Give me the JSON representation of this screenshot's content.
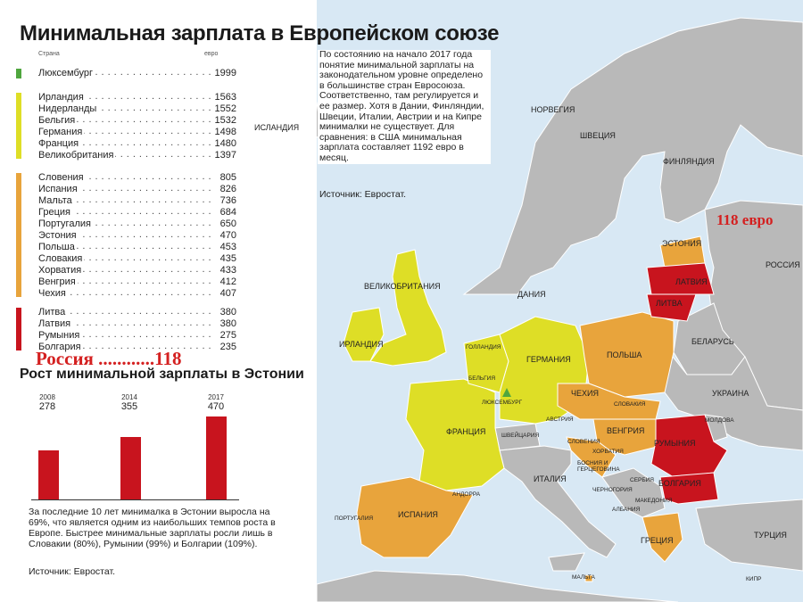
{
  "title": "Минимальная зарплата в Европейском союзе",
  "table_header": {
    "country": "Страна",
    "unit": "евро"
  },
  "groups": [
    {
      "color": "#4fa63e",
      "items": [
        {
          "name": "Люксембург",
          "value": "1999"
        }
      ]
    },
    {
      "color": "#dede26",
      "items": [
        {
          "name": "Ирландия",
          "value": "1563"
        },
        {
          "name": "Нидерланды",
          "value": "1552"
        },
        {
          "name": "Бельгия",
          "value": "1532"
        },
        {
          "name": "Германия",
          "value": "1498"
        },
        {
          "name": "Франция",
          "value": "1480"
        },
        {
          "name": "Великобритания",
          "value": "1397"
        }
      ]
    },
    {
      "color": "#e8a43c",
      "items": [
        {
          "name": "Словения",
          "value": "805"
        },
        {
          "name": "Испания",
          "value": "826"
        },
        {
          "name": "Мальта",
          "value": "736"
        },
        {
          "name": "Греция",
          "value": "684"
        },
        {
          "name": "Португалия",
          "value": "650"
        },
        {
          "name": "Эстония",
          "value": "470"
        },
        {
          "name": "Польша",
          "value": "453"
        },
        {
          "name": "Словакия",
          "value": "435"
        },
        {
          "name": "Хорватия",
          "value": "433"
        },
        {
          "name": "Венгрия",
          "value": "412"
        },
        {
          "name": "Чехия",
          "value": "407"
        }
      ]
    },
    {
      "color": "#c8141e",
      "items": [
        {
          "name": "Литва",
          "value": "380"
        },
        {
          "name": "Латвия",
          "value": "380"
        },
        {
          "name": "Румыния",
          "value": "275"
        },
        {
          "name": "Болгария",
          "value": "235"
        }
      ]
    }
  ],
  "russia_note": "Россия ............118",
  "estonia_title": "Рост минимальной зарплаты в Эстонии",
  "chart_data": {
    "type": "bar",
    "title": "Рост минимальной зарплаты в Эстонии",
    "categories": [
      "2008",
      "2014",
      "2017"
    ],
    "values": [
      278,
      355,
      470
    ],
    "color": "#c8141e"
  },
  "estonia_note": "За последние 10 лет минималка в Эстонии выросла на 69%, что является одним из наибольших темпов роста в Европе. Быстрее минимальные зарплаты росли лишь в Словакии (80%), Румынии (99%) и Болгарии (109%).",
  "source": "Источник: Евростат.",
  "intro": "По состоянию на начало 2017 года понятие минимальной зарплаты на законодательном уровне определено в большинстве стран Евросоюза. Соответственно, там регулируется и ее размер. Хотя в Дании, Финляндии, Швеции, Италии, Австрии и на Кипре минималки не существует. Для сравнения: в США минимальная зарплата составляет 1192 евро в месяц.",
  "intro_source": "Источник: Евростат.",
  "red_label": "118 евро",
  "map_labels": {
    "iceland": "ИСЛАНДИЯ",
    "norway": "НОРВЕГИЯ",
    "sweden": "ШВЕЦИЯ",
    "finland": "ФИНЛЯНДИЯ",
    "russia": "РОССИЯ",
    "estonia": "ЭСТОНИЯ",
    "latvia": "ЛАТВИЯ",
    "lithuania": "ЛИТВА",
    "denmark": "ДАНИЯ",
    "uk": "ВЕЛИКОБРИТАНИЯ",
    "ireland": "ИРЛАНДИЯ",
    "netherlands": "ГОЛЛАНДИЯ",
    "germany": "ГЕРМАНИЯ",
    "poland": "ПОЛЬША",
    "belarus": "БЕЛАРУСЬ",
    "belgium": "БЕЛЬГИЯ",
    "luxembourg": "ЛЮКСЕМБУРГ",
    "czechia": "ЧЕХИЯ",
    "ukraine": "УКРАИНА",
    "slovakia": "СЛОВАКИЯ",
    "moldova": "МОЛДОВА",
    "austria": "АВСТРИЯ",
    "hungary": "ВЕНГРИЯ",
    "romania": "РУМЫНИЯ",
    "france": "ФРАНЦИЯ",
    "switzerland": "ШВЕЙЦАРИЯ",
    "slovenia": "СЛОВЕНИЯ",
    "croatia": "ХОРВАТИЯ",
    "bosnia": "БОСНИЯ И ГЕРЦЕГОВИНА",
    "serbia": "СЕРБИЯ",
    "bulgaria": "БОЛГАРИЯ",
    "italy": "ИТАЛИЯ",
    "montenegro": "ЧЕРНОГОРИЯ",
    "macedonia": "МАКЕДОНИЯ",
    "albania": "АЛБАНИЯ",
    "andorra": "АНДОРРА",
    "portugal": "ПОРТУГАЛИЯ",
    "spain": "ИСПАНИЯ",
    "greece": "ГРЕЦИЯ",
    "turkey": "ТУРЦИЯ",
    "malta": "МАЛЬТА",
    "cyprus": "КИПР"
  },
  "colors": {
    "sea": "#d8e8f4",
    "land": "#b9b9b9",
    "border": "#ffffff"
  }
}
